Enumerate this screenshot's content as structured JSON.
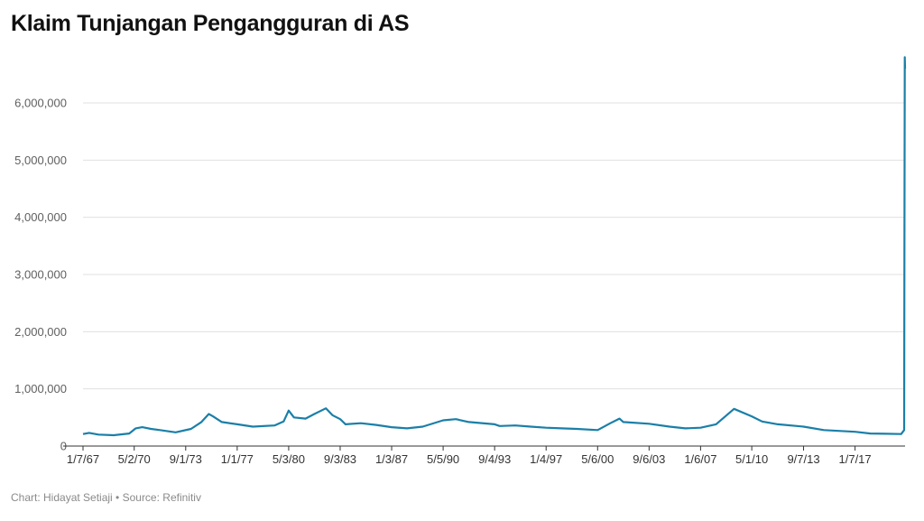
{
  "title": "Klaim Tunjangan Pengangguran di AS",
  "footer": "Chart: Hidayat Setiaji • Source: Refinitiv",
  "colors": {
    "line": "#1a7fa8",
    "grid": "#e0e0e0",
    "axis": "#333333"
  },
  "chart_data": {
    "type": "line",
    "title": "Klaim Tunjangan Pengangguran di AS",
    "xlabel": "",
    "ylabel": "",
    "x_tick_labels": [
      "1/7/67",
      "5/2/70",
      "9/1/73",
      "1/1/77",
      "5/3/80",
      "9/3/83",
      "1/3/87",
      "5/5/90",
      "9/4/93",
      "1/4/97",
      "5/6/00",
      "9/6/03",
      "1/6/07",
      "5/1/10",
      "9/7/13",
      "1/7/17"
    ],
    "y_tick_labels": [
      "0",
      "1,000,000",
      "2,000,000",
      "3,000,000",
      "4,000,000",
      "5,000,000",
      "6,000,000"
    ],
    "ylim": [
      0,
      6900000
    ],
    "xlim": [
      "1/7/67",
      "4/4/20"
    ],
    "grid": true,
    "legend": "none",
    "series": [
      {
        "x": [
          "1/7/67",
          "6/1/67",
          "1/6/68",
          "1/4/69",
          "1/3/70",
          "6/6/70",
          "11/7/70",
          "6/5/71",
          "1/1/72",
          "1/6/73",
          "1/5/74",
          "9/7/74",
          "3/1/75",
          "6/7/75",
          "1/3/76",
          "1/1/77",
          "1/7/78",
          "6/2/79",
          "1/5/80",
          "5/3/80",
          "9/6/80",
          "6/6/81",
          "1/2/82",
          "10/2/82",
          "3/5/83",
          "9/3/83",
          "1/7/84",
          "1/5/85",
          "1/4/86",
          "1/3/87",
          "1/2/88",
          "1/7/89",
          "5/5/90",
          "3/2/91",
          "1/4/92",
          "9/4/93",
          "1/1/94",
          "1/7/95",
          "1/6/96",
          "1/4/97",
          "1/3/98",
          "1/2/99",
          "5/6/00",
          "3/3/01",
          "10/6/01",
          "1/5/02",
          "9/6/03",
          "1/1/05",
          "1/7/06",
          "1/6/07",
          "1/5/08",
          "3/7/09",
          "5/1/10",
          "1/1/11",
          "1/7/12",
          "9/7/13",
          "1/3/15",
          "1/7/17",
          "1/6/18",
          "1/5/19",
          "1/4/20",
          "3/14/20",
          "3/21/20",
          "3/28/20",
          "4/4/20"
        ],
        "values": [
          210000,
          230000,
          200000,
          190000,
          220000,
          310000,
          330000,
          300000,
          280000,
          240000,
          300000,
          420000,
          560000,
          520000,
          420000,
          380000,
          340000,
          360000,
          430000,
          620000,
          500000,
          480000,
          560000,
          660000,
          540000,
          470000,
          380000,
          400000,
          370000,
          330000,
          310000,
          340000,
          450000,
          470000,
          420000,
          380000,
          350000,
          360000,
          340000,
          320000,
          310000,
          300000,
          280000,
          400000,
          480000,
          420000,
          390000,
          340000,
          310000,
          320000,
          380000,
          650000,
          520000,
          430000,
          380000,
          340000,
          280000,
          250000,
          220000,
          215000,
          210000,
          280000,
          3300000,
          6800000,
          6600000
        ]
      }
    ]
  }
}
